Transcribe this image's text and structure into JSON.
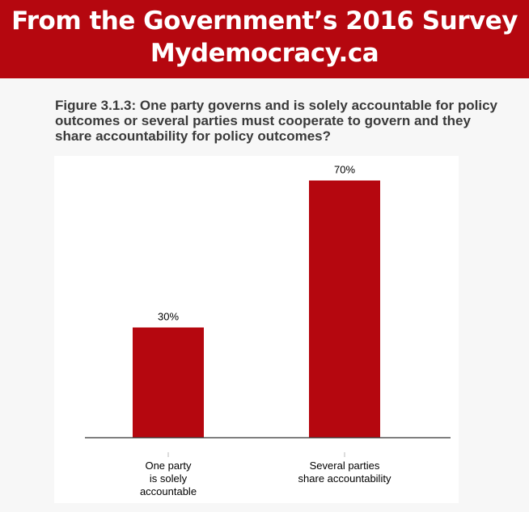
{
  "header": {
    "line1": "From the Government’s 2016 Survey",
    "line2": "Mydemocracy.ca"
  },
  "figure_title": "Figure 3.1.3: One party governs and is solely accountable for policy outcomes or several parties must cooperate to govern and they share accountability for policy outcomes?",
  "colors": {
    "banner": "#b5070f",
    "bar": "#b5070f"
  },
  "chart_data": {
    "type": "bar",
    "title": "Figure 3.1.3: One party governs and is solely accountable for policy outcomes or several parties must cooperate to govern and they share accountability for policy outcomes?",
    "categories": [
      [
        "One party",
        "is solely",
        "accountable"
      ],
      [
        "Several parties",
        "share accountability"
      ]
    ],
    "values": [
      30,
      70
    ],
    "data_labels": [
      "30%",
      "70%"
    ],
    "xlabel": "",
    "ylabel": "",
    "ylim": [
      0,
      100
    ],
    "grid": false,
    "legend": "none"
  }
}
